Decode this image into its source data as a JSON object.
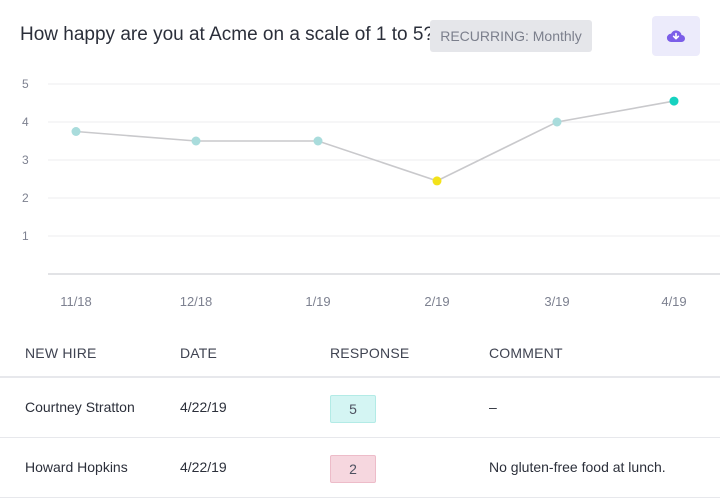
{
  "header": {
    "question": "How happy are you at Acme on a scale of 1 to 5?",
    "recurring_label": "RECURRING: Monthly"
  },
  "colors": {
    "line": "#c9c9cc",
    "point_default": "#a9dcdc",
    "point_low": "#f3e21a",
    "point_latest": "#16d2c0",
    "download_icon": "#7b5ee8",
    "badge_high": "#d4f5f3",
    "badge_low": "#f6d7df",
    "badge_high_border": "#b3ebe6",
    "badge_low_border": "#edbcc9"
  },
  "chart_data": {
    "type": "line",
    "categories": [
      "11/18",
      "12/18",
      "1/19",
      "2/19",
      "3/19",
      "4/19"
    ],
    "values": [
      3.75,
      3.5,
      3.5,
      2.45,
      4.0,
      4.55
    ],
    "yticks": [
      "1",
      "2",
      "3",
      "4",
      "5"
    ],
    "ylim": [
      0,
      5
    ],
    "grid": true
  },
  "table": {
    "columns": [
      "NEW HIRE",
      "DATE",
      "RESPONSE",
      "COMMENT"
    ],
    "rows": [
      {
        "name": "Courtney Stratton",
        "date": "4/22/19",
        "response": "5",
        "comment": "–",
        "tone": "high"
      },
      {
        "name": "Howard Hopkins",
        "date": "4/22/19",
        "response": "2",
        "comment": "No gluten-free food at lunch.",
        "tone": "low"
      }
    ]
  }
}
